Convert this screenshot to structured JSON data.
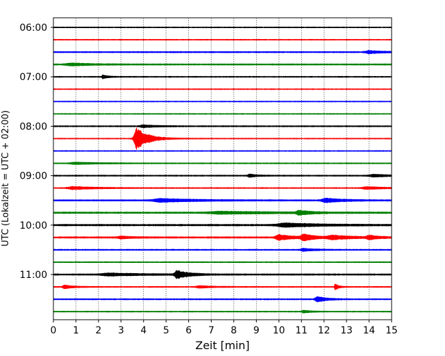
{
  "chart_data": {
    "type": "line",
    "title": "",
    "xlabel": "Zeit  [min]",
    "ylabel": "UTC (Lokalzeit = UTC + 02:00)",
    "xlim": [
      0,
      15
    ],
    "x_ticks": [
      0,
      1,
      2,
      3,
      4,
      5,
      6,
      7,
      8,
      9,
      10,
      11,
      12,
      13,
      14,
      15
    ],
    "x_tick_labels": [
      "0",
      "1",
      "2",
      "3",
      "4",
      "5",
      "6",
      "7",
      "8",
      "9",
      "10",
      "11",
      "12",
      "13",
      "14",
      "15"
    ],
    "x_grid": true,
    "y_tick_labels": [
      "06:00",
      "07:00",
      "08:00",
      "09:00",
      "10:00",
      "11:00"
    ],
    "y_tick_label_rows": [
      0,
      4,
      8,
      12,
      16,
      20
    ],
    "row_color_cycle": [
      "#000000",
      "#ff0000",
      "#0000ff",
      "#008000"
    ],
    "rows": [
      {
        "start_utc": "06:00",
        "color": "#000000",
        "noise": 0.8,
        "events": []
      },
      {
        "start_utc": "06:15",
        "color": "#ff0000",
        "noise": 0.8,
        "events": []
      },
      {
        "start_utc": "06:30",
        "color": "#0000ff",
        "noise": 1.1,
        "events": [
          {
            "t": 14.0,
            "amp": 2.0,
            "dur": 0.6
          }
        ]
      },
      {
        "start_utc": "06:45",
        "color": "#008000",
        "noise": 1.1,
        "events": [
          {
            "t": 0.8,
            "amp": 1.8,
            "dur": 1.0
          }
        ]
      },
      {
        "start_utc": "07:00",
        "color": "#000000",
        "noise": 0.9,
        "events": [
          {
            "t": 2.2,
            "amp": 3.0,
            "dur": 0.2
          }
        ]
      },
      {
        "start_utc": "07:15",
        "color": "#ff0000",
        "noise": 0.8,
        "events": []
      },
      {
        "start_utc": "07:30",
        "color": "#0000ff",
        "noise": 0.8,
        "events": []
      },
      {
        "start_utc": "07:45",
        "color": "#008000",
        "noise": 0.8,
        "events": []
      },
      {
        "start_utc": "08:00",
        "color": "#000000",
        "noise": 1.0,
        "events": [
          {
            "t": 4.0,
            "amp": 1.8,
            "dur": 0.6
          }
        ]
      },
      {
        "start_utc": "08:15",
        "color": "#ff0000",
        "noise": 0.8,
        "events": [
          {
            "t": 3.7,
            "amp": 16.0,
            "dur": 0.5
          }
        ]
      },
      {
        "start_utc": "08:30",
        "color": "#0000ff",
        "noise": 0.8,
        "events": []
      },
      {
        "start_utc": "08:45",
        "color": "#008000",
        "noise": 0.9,
        "events": [
          {
            "t": 1.0,
            "amp": 1.5,
            "dur": 1.0
          }
        ]
      },
      {
        "start_utc": "09:00",
        "color": "#000000",
        "noise": 1.0,
        "events": [
          {
            "t": 8.7,
            "amp": 2.2,
            "dur": 0.3
          },
          {
            "t": 14.2,
            "amp": 1.8,
            "dur": 0.8
          }
        ]
      },
      {
        "start_utc": "09:15",
        "color": "#ff0000",
        "noise": 0.9,
        "events": [
          {
            "t": 0.9,
            "amp": 2.0,
            "dur": 1.0
          },
          {
            "t": 13.9,
            "amp": 1.8,
            "dur": 0.8
          }
        ]
      },
      {
        "start_utc": "09:30",
        "color": "#0000ff",
        "noise": 1.2,
        "events": [
          {
            "t": 4.8,
            "amp": 2.4,
            "dur": 1.5
          },
          {
            "t": 12.1,
            "amp": 2.8,
            "dur": 0.8
          }
        ]
      },
      {
        "start_utc": "09:45",
        "color": "#008000",
        "noise": 1.3,
        "events": [
          {
            "t": 10.9,
            "amp": 3.0,
            "dur": 0.5
          },
          {
            "t": 7.5,
            "amp": 1.6,
            "dur": 2.5
          }
        ]
      },
      {
        "start_utc": "10:00",
        "color": "#000000",
        "noise": 1.4,
        "events": [
          {
            "t": 10.3,
            "amp": 2.6,
            "dur": 1.5
          }
        ]
      },
      {
        "start_utc": "10:15",
        "color": "#ff0000",
        "noise": 1.3,
        "events": [
          {
            "t": 10.0,
            "amp": 4.0,
            "dur": 0.6
          },
          {
            "t": 11.1,
            "amp": 4.5,
            "dur": 0.5
          },
          {
            "t": 12.4,
            "amp": 2.5,
            "dur": 1.0
          },
          {
            "t": 14.0,
            "amp": 2.5,
            "dur": 0.4
          },
          {
            "t": 3.0,
            "amp": 1.6,
            "dur": 0.5
          }
        ]
      },
      {
        "start_utc": "10:30",
        "color": "#0000ff",
        "noise": 1.0,
        "events": [
          {
            "t": 11.1,
            "amp": 2.0,
            "dur": 0.5
          }
        ]
      },
      {
        "start_utc": "10:45",
        "color": "#008000",
        "noise": 0.9,
        "events": []
      },
      {
        "start_utc": "11:00",
        "color": "#000000",
        "noise": 1.2,
        "events": [
          {
            "t": 5.5,
            "amp": 6.0,
            "dur": 0.5
          },
          {
            "t": 2.5,
            "amp": 1.8,
            "dur": 1.5
          }
        ]
      },
      {
        "start_utc": "11:15",
        "color": "#ff0000",
        "noise": 0.9,
        "events": [
          {
            "t": 0.5,
            "amp": 2.5,
            "dur": 0.4
          },
          {
            "t": 12.5,
            "amp": 4.5,
            "dur": 0.15
          },
          {
            "t": 6.5,
            "amp": 1.6,
            "dur": 0.6
          }
        ]
      },
      {
        "start_utc": "11:30",
        "color": "#0000ff",
        "noise": 1.0,
        "events": [
          {
            "t": 11.7,
            "amp": 4.0,
            "dur": 0.4
          }
        ]
      },
      {
        "start_utc": "11:45",
        "color": "#008000",
        "noise": 0.9,
        "events": [
          {
            "t": 11.1,
            "amp": 2.0,
            "dur": 0.3
          }
        ]
      }
    ]
  }
}
